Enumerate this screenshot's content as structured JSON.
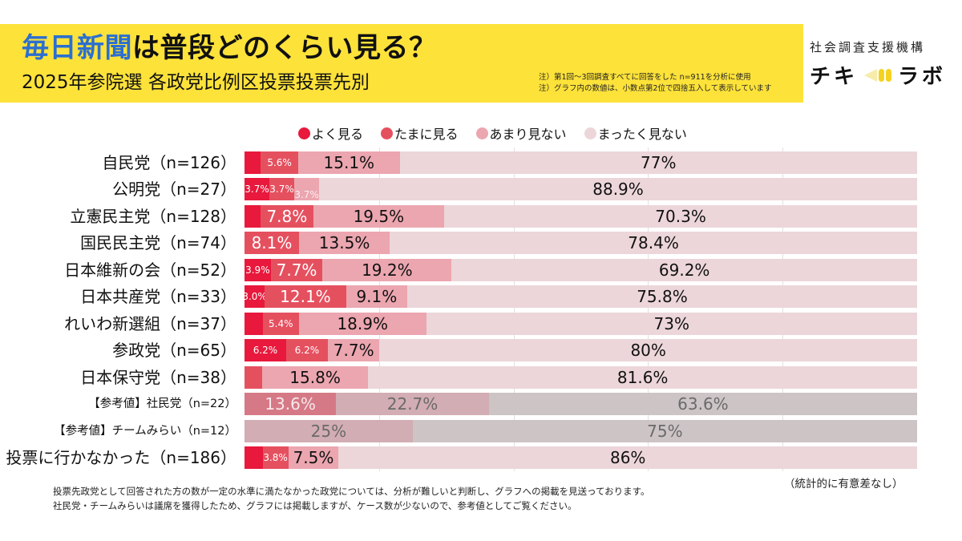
{
  "header": {
    "title_accent": "毎日新聞",
    "title_rest": "は普段どのくらい見る？",
    "subtitle": "2025年参院選 各政党比例区投票投票先別",
    "notes": [
      "注）第1回〜3回調査すべてに回答をした n=911を分析に使用",
      "注）グラフ内の数値は、小数点第2位で四捨五入して表示しています"
    ]
  },
  "logo": {
    "org": "社会調査支援機構",
    "name_left": "チキ",
    "name_right": "ラボ",
    "icon": "speaker-mark-icon"
  },
  "colors": {
    "band": "#fde23a",
    "title_accent": "#2b6fd0",
    "series": [
      "#e8193c",
      "#e5505f",
      "#eba6b0",
      "#ecd6d9"
    ],
    "reference_series": [
      "#c95a6c",
      "#d67986",
      "#d2adb3",
      "#cdc4c6"
    ]
  },
  "chart_data": {
    "type": "bar",
    "orientation": "horizontal-stacked-100",
    "title": "毎日新聞は普段どのくらい見る？",
    "subtitle": "2025年参院選 各政党比例区投票投票先別",
    "xlabel": "",
    "ylabel": "",
    "xlim": [
      0,
      100
    ],
    "grid": true,
    "legend_position": "top",
    "legend": [
      {
        "label": "よく見る"
      },
      {
        "label": "たまに見る"
      },
      {
        "label": "あまり見ない"
      },
      {
        "label": "まったく見ない"
      }
    ],
    "series": [
      {
        "name": "よく見る"
      },
      {
        "name": "たまに見る"
      },
      {
        "name": "あまり見ない"
      },
      {
        "name": "まったく見ない"
      }
    ],
    "rows": [
      {
        "label": "自民党（n=126）",
        "reference": false,
        "values": [
          2.4,
          5.6,
          15.1,
          77.0
        ],
        "labels": [
          null,
          "5.6%",
          "15.1%",
          "77%"
        ]
      },
      {
        "label": "公明党（n=27）",
        "reference": false,
        "values": [
          3.7,
          3.7,
          3.7,
          88.9
        ],
        "labels": [
          "3.7%",
          "3.7%",
          "3.7%",
          "88.9%"
        ]
      },
      {
        "label": "立憲民主党（n=128）",
        "reference": false,
        "values": [
          2.4,
          7.8,
          19.5,
          70.3
        ],
        "labels": [
          null,
          "7.8%",
          "19.5%",
          "70.3%"
        ]
      },
      {
        "label": "国民民主党（n=74）",
        "reference": false,
        "values": [
          0,
          8.1,
          13.5,
          78.4
        ],
        "labels": [
          null,
          "8.1%",
          "13.5%",
          "78.4%"
        ]
      },
      {
        "label": "日本維新の会（n=52）",
        "reference": false,
        "values": [
          3.9,
          7.7,
          19.2,
          69.2
        ],
        "labels": [
          "3.9%",
          "7.7%",
          "19.2%",
          "69.2%"
        ]
      },
      {
        "label": "日本共産党（n=33）",
        "reference": false,
        "values": [
          3.0,
          12.1,
          9.1,
          75.8
        ],
        "labels": [
          "3.0%",
          "12.1%",
          "9.1%",
          "75.8%"
        ]
      },
      {
        "label": "れいわ新選組（n=37）",
        "reference": false,
        "values": [
          2.7,
          5.4,
          18.9,
          73.0
        ],
        "labels": [
          null,
          "5.4%",
          "18.9%",
          "73%"
        ]
      },
      {
        "label": "参政党（n=65）",
        "reference": false,
        "values": [
          6.2,
          6.2,
          7.7,
          80.0
        ],
        "labels": [
          "6.2%",
          "6.2%",
          "7.7%",
          "80%"
        ]
      },
      {
        "label": "日本保守党（n=38）",
        "reference": false,
        "values": [
          0,
          2.6,
          15.8,
          81.6
        ],
        "labels": [
          null,
          null,
          "15.8%",
          "81.6%"
        ]
      },
      {
        "label": "【参考値】社民党（n=22）",
        "reference": true,
        "values": [
          0,
          13.6,
          22.7,
          63.6
        ],
        "labels": [
          null,
          "13.6%",
          "22.7%",
          "63.6%"
        ]
      },
      {
        "label": "【参考値】チームみらい（n=12）",
        "reference": true,
        "values": [
          0,
          0,
          25.0,
          75.0
        ],
        "labels": [
          null,
          null,
          "25%",
          "75%"
        ]
      },
      {
        "label": "投票に行かなかった（n=186）",
        "reference": false,
        "values": [
          2.7,
          3.8,
          7.5,
          86.0
        ],
        "labels": [
          null,
          "3.8%",
          "7.5%",
          "86%"
        ]
      }
    ],
    "annotations": [
      "（統計的に有意差なし）"
    ]
  },
  "footer": {
    "significance": "（統計的に有意差なし）",
    "lines": [
      "投票先政党として回答された方の数が一定の水準に満たなかった政党については、分析が難しいと判断し、グラフへの掲載を見送っております。",
      "社民党・チームみらいは議席を獲得したため、グラフには掲載しますが、ケース数が少ないので、参考値としてご覧ください。"
    ]
  }
}
